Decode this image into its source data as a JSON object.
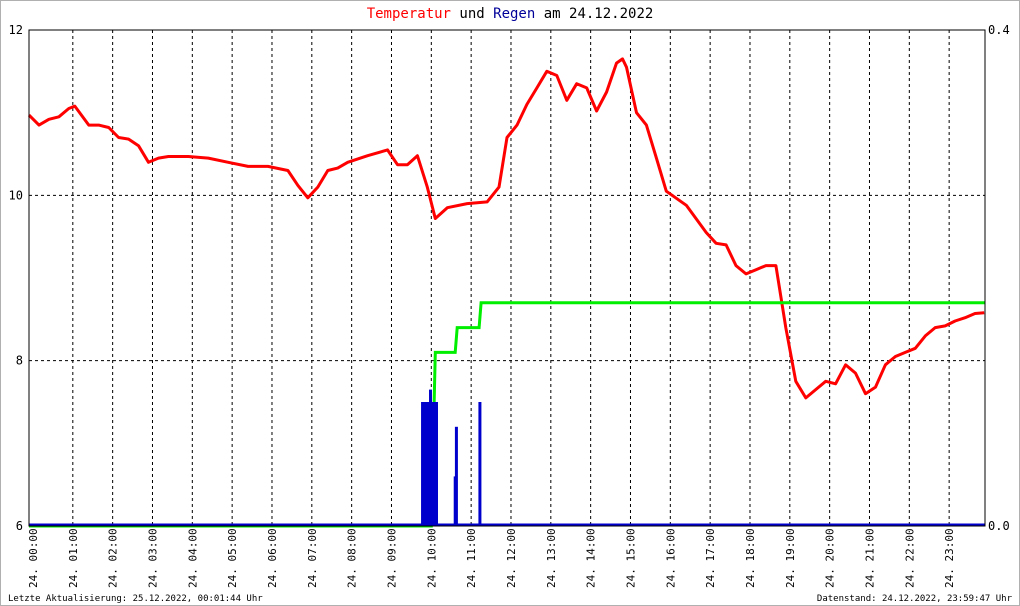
{
  "title": {
    "part1": "Temperatur",
    "part2": " und ",
    "part3": "Regen",
    "part4": " am 24.12.2022"
  },
  "footer": {
    "left": "Letzte Aktualisierung: 25.12.2022, 00:01:44 Uhr",
    "right": "Datenstand: 24.12.2022, 23:59:47 Uhr"
  },
  "colors": {
    "temperature": "#ff0000",
    "rain": "#0000cc",
    "rain_sum": "#00ee00",
    "title_red": "#ff0000",
    "title_blue": "#000099"
  },
  "chart_data": {
    "type": "line",
    "x_range": [
      0,
      24
    ],
    "xtick_labels": [
      "24. 00:00",
      "24. 01:00",
      "24. 02:00",
      "24. 03:00",
      "24. 04:00",
      "24. 05:00",
      "24. 06:00",
      "24. 07:00",
      "24. 08:00",
      "24. 09:00",
      "24. 10:00",
      "24. 11:00",
      "24. 12:00",
      "24. 13:00",
      "24. 14:00",
      "24. 15:00",
      "24. 16:00",
      "24. 17:00",
      "24. 18:00",
      "24. 19:00",
      "24. 20:00",
      "24. 21:00",
      "24. 22:00",
      "24. 23:00"
    ],
    "y_left": {
      "range": [
        6,
        12
      ],
      "ticks": [
        6,
        8,
        10,
        12
      ],
      "tick_labels": [
        "6",
        "8",
        "10",
        "12"
      ]
    },
    "y_right": {
      "range": [
        0,
        0.4
      ],
      "ticks": [
        0,
        0.4
      ],
      "tick_labels": [
        "0.0",
        "0.4"
      ]
    },
    "grid": true,
    "series": [
      {
        "axis": "left",
        "style": "line",
        "color": "#ff0000",
        "x": [
          0.0,
          0.25,
          0.5,
          0.75,
          1.0,
          1.15,
          1.5,
          1.75,
          2.0,
          2.25,
          2.5,
          2.75,
          3.0,
          3.25,
          3.5,
          4.0,
          4.5,
          5.0,
          5.5,
          6.0,
          6.5,
          6.75,
          7.0,
          7.25,
          7.5,
          7.75,
          8.0,
          8.5,
          9.0,
          9.25,
          9.5,
          9.75,
          10.0,
          10.2,
          10.5,
          11.0,
          11.5,
          11.8,
          12.0,
          12.25,
          12.5,
          12.75,
          13.0,
          13.25,
          13.5,
          13.75,
          14.0,
          14.25,
          14.5,
          14.75,
          14.9,
          15.0,
          15.25,
          15.5,
          15.75,
          16.0,
          16.5,
          17.0,
          17.25,
          17.5,
          17.75,
          18.0,
          18.25,
          18.5,
          18.75,
          19.0,
          19.25,
          19.5,
          19.75,
          20.0,
          20.25,
          20.5,
          20.75,
          21.0,
          21.25,
          21.5,
          21.75,
          22.0,
          22.25,
          22.5,
          22.75,
          23.0,
          23.25,
          23.5,
          23.75,
          23.98
        ],
        "y": [
          10.97,
          10.85,
          10.92,
          10.95,
          11.05,
          11.08,
          10.85,
          10.85,
          10.82,
          10.7,
          10.68,
          10.6,
          10.4,
          10.45,
          10.47,
          10.47,
          10.45,
          10.4,
          10.35,
          10.35,
          10.3,
          10.12,
          9.97,
          10.1,
          10.3,
          10.33,
          10.4,
          10.48,
          10.55,
          10.37,
          10.37,
          10.48,
          10.1,
          9.72,
          9.85,
          9.9,
          9.92,
          10.1,
          10.7,
          10.85,
          11.1,
          11.3,
          11.5,
          11.45,
          11.15,
          11.35,
          11.3,
          11.02,
          11.25,
          11.6,
          11.65,
          11.55,
          11.0,
          10.85,
          10.45,
          10.05,
          9.88,
          9.55,
          9.42,
          9.4,
          9.15,
          9.05,
          9.1,
          9.15,
          9.15,
          8.4,
          7.75,
          7.55,
          7.65,
          7.75,
          7.72,
          7.95,
          7.85,
          7.6,
          7.68,
          7.95,
          8.05,
          8.1,
          8.15,
          8.3,
          8.4,
          8.42,
          8.48,
          8.52,
          8.57,
          8.58
        ]
      },
      {
        "axis": "right",
        "style": "step",
        "color": "#00ee00",
        "x": [
          0.0,
          10.1,
          10.2,
          10.7,
          10.75,
          11.3,
          11.35,
          24.0
        ],
        "y": [
          0.0,
          0.0,
          0.14,
          0.14,
          0.16,
          0.16,
          0.18,
          0.18
        ]
      },
      {
        "axis": "right",
        "style": "bar",
        "color": "#0000cc",
        "x": [
          9.88,
          9.93,
          9.98,
          10.03,
          10.08,
          10.13,
          10.18,
          10.23,
          10.7,
          10.73,
          11.32
        ],
        "y": [
          0.1,
          0.1,
          0.1,
          0.1,
          0.11,
          0.1,
          0.1,
          0.1,
          0.04,
          0.08,
          0.1
        ]
      }
    ]
  }
}
